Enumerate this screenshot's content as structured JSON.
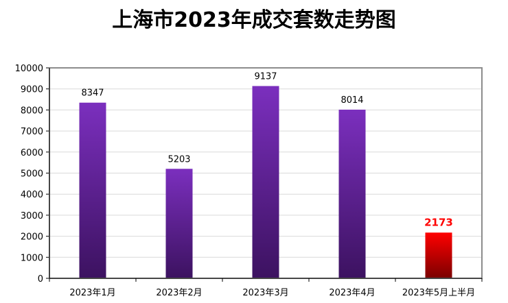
{
  "chart_data": {
    "type": "bar",
    "title": "上海市2023年成交套数走势图",
    "categories": [
      "2023年1月",
      "2023年2月",
      "2023年3月",
      "2023年4月",
      "2023年5月上半月"
    ],
    "values": [
      8347,
      5203,
      9137,
      8014,
      2173
    ],
    "data_labels": [
      "8347",
      "5203",
      "9137",
      "8014",
      "2173"
    ],
    "highlight_index": 4,
    "ylim": [
      0,
      10000
    ],
    "y_ticks": [
      "0",
      "1000",
      "2000",
      "3000",
      "4000",
      "5000",
      "6000",
      "7000",
      "8000",
      "9000",
      "10000"
    ],
    "grid": true,
    "legend": "none",
    "colors": {
      "bar_top": "#7b2fbe",
      "bar_bottom": "#3c1260",
      "highlight_top": "#ff0000",
      "highlight_bottom": "#7a0000",
      "highlight_label": "#ff0000",
      "grid": "#d9d9d9",
      "frame": "#8c8c8c"
    }
  }
}
